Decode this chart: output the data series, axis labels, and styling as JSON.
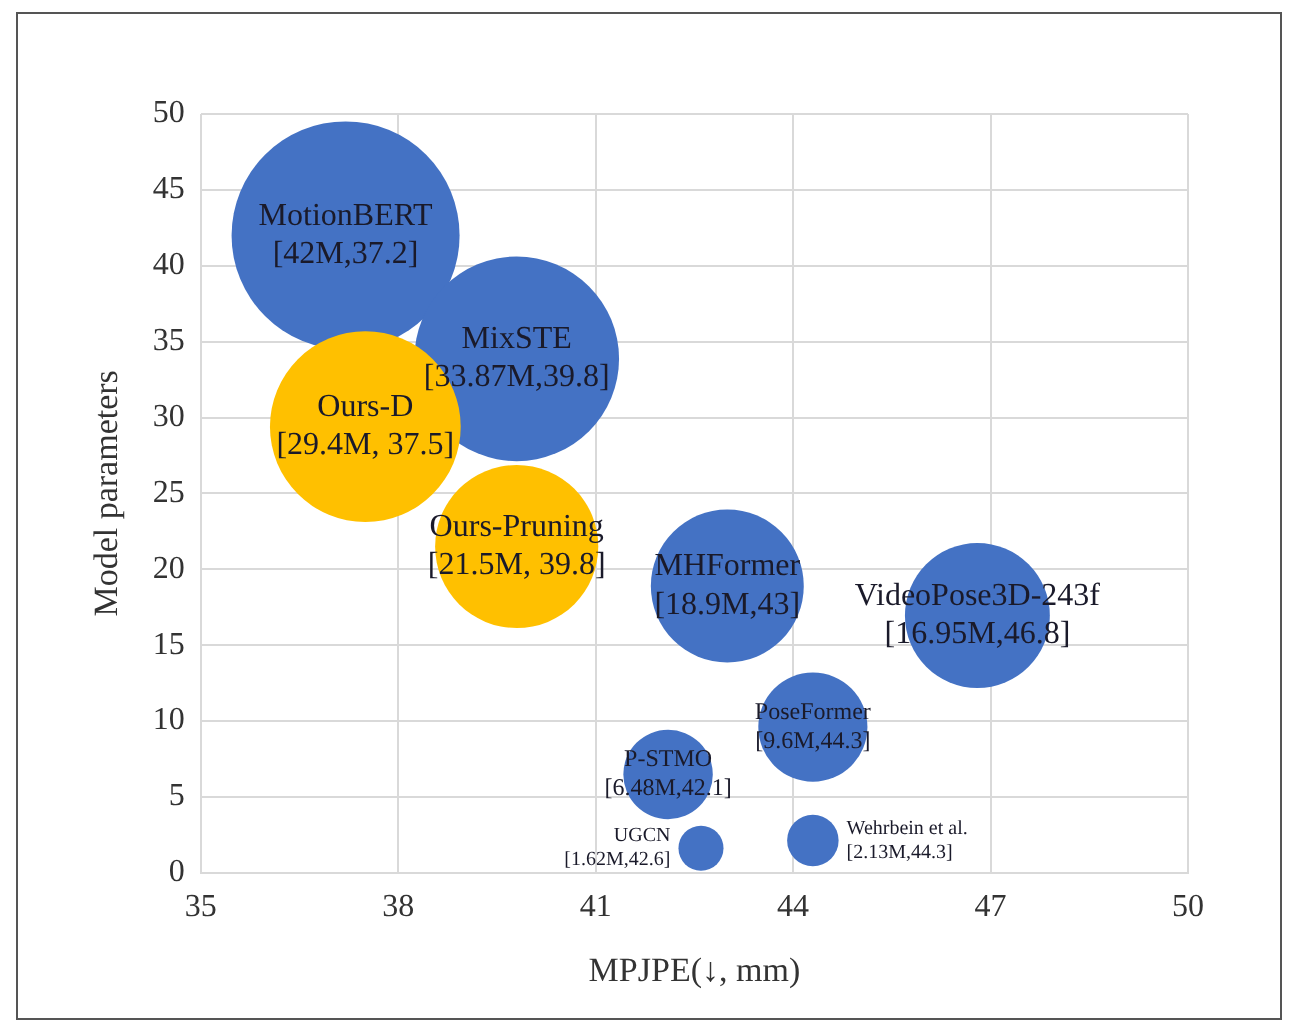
{
  "chart_data": {
    "type": "bubble",
    "xlabel": "MPJPE(↓, mm)",
    "ylabel": "Model parameters",
    "x": [
      37.2,
      39.8,
      37.5,
      39.8,
      43,
      46.8,
      44.3,
      42.1,
      42.6,
      44.3
    ],
    "values": [
      42,
      33.87,
      29.4,
      21.5,
      18.9,
      16.95,
      9.6,
      6.48,
      1.62,
      2.13
    ],
    "sizes": [
      1,
      0.806,
      0.7,
      0.512,
      0.45,
      0.404,
      0.229,
      0.154,
      0.039,
      0.051
    ],
    "colors": [
      "#4472c4",
      "#4472c4",
      "#ffc000",
      "#ffc000",
      "#4472c4",
      "#4472c4",
      "#4472c4",
      "#4472c4",
      "#4472c4",
      "#4472c4"
    ],
    "annotations": [
      {
        "text": "MotionBERT\n[42M,37.2]",
        "x": 37.2,
        "y": 42
      },
      {
        "text": "MixSTE\n[33.87M,39.8]",
        "x": 39.8,
        "y": 33.87
      },
      {
        "text": "Ours-D\n[29.4M, 37.5]",
        "x": 37.5,
        "y": 29.4
      },
      {
        "text": "Ours-Pruning\n[21.5M, 39.8]",
        "x": 39.8,
        "y": 21.5
      },
      {
        "text": "MHFormer\n[18.9M,43]",
        "x": 43,
        "y": 18.9
      },
      {
        "text": "VideoPose3D-243f\n[16.95M,46.8]",
        "x": 46.8,
        "y": 16.95
      },
      {
        "text": "PoseFormer\n[9.6M,44.3]",
        "x": 44.3,
        "y": 9.6
      },
      {
        "text": "P-STMO\n[6.48M,42.1]",
        "x": 42.1,
        "y": 6.48
      },
      {
        "text": "UGCN\n[1.62M,42.6]",
        "x": 42.6,
        "y": 1.62
      },
      {
        "text": "Wehrbein et al.\n[2.13M,44.3]",
        "x": 44.3,
        "y": 2.13
      }
    ],
    "xlim": [
      35,
      50
    ],
    "xticks": [
      35,
      38,
      41,
      44,
      47,
      50
    ],
    "ylim": [
      0,
      50
    ],
    "yticks": [
      0,
      5,
      10,
      15,
      20,
      25,
      30,
      35,
      40,
      45,
      50
    ],
    "grid": true,
    "legend": false
  }
}
